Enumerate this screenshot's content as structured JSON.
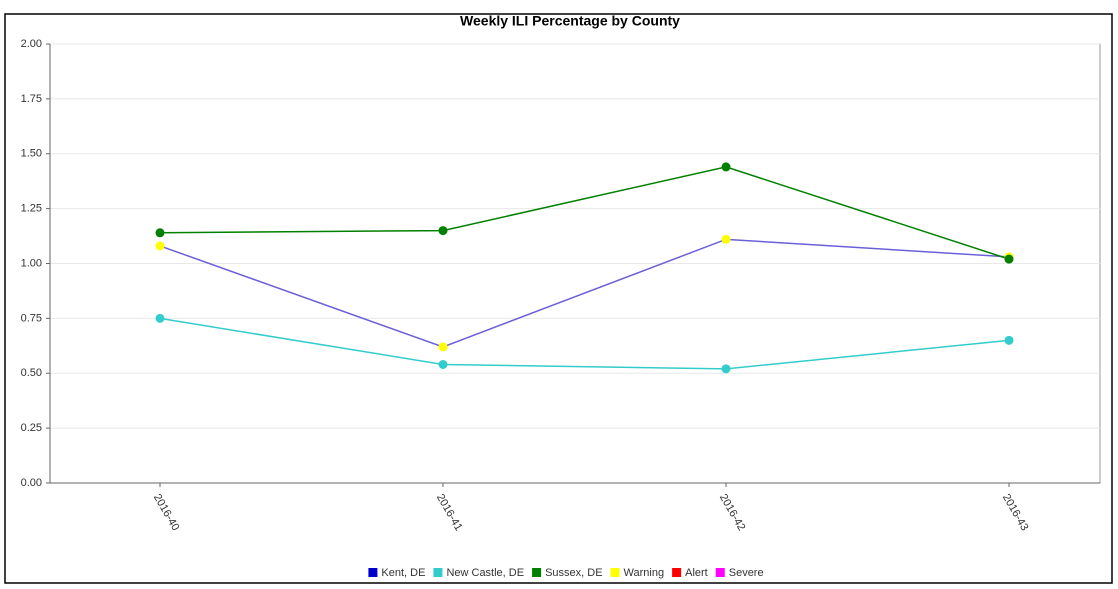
{
  "chart_data": {
    "type": "line",
    "title": "Weekly ILI Percentage by County",
    "categories": [
      "2016-40",
      "2016-41",
      "2016-42",
      "2016-43"
    ],
    "series": [
      {
        "name": "Kent, DE",
        "color": "#0000cc",
        "line_color": "#6a5fd8",
        "marker_color": "#ffff00",
        "values": [
          1.08,
          0.62,
          1.11,
          1.03
        ]
      },
      {
        "name": "New Castle, DE",
        "color": "#33cccc",
        "values": [
          0.75,
          0.54,
          0.52,
          0.65
        ]
      },
      {
        "name": "Sussex, DE",
        "color": "#008000",
        "values": [
          1.14,
          1.15,
          1.44,
          1.02
        ]
      }
    ],
    "status_levels": [
      {
        "name": "Warning",
        "color": "#ffff00"
      },
      {
        "name": "Alert",
        "color": "#ff0000"
      },
      {
        "name": "Severe",
        "color": "#ff00ff"
      }
    ],
    "ylim": [
      0,
      2
    ],
    "yticks": [
      {
        "value": 0,
        "label": "0.00"
      },
      {
        "value": 0.25,
        "label": "0.25"
      },
      {
        "value": 0.5,
        "label": "0.50"
      },
      {
        "value": 0.75,
        "label": "0.75"
      },
      {
        "value": 1,
        "label": "1.00"
      },
      {
        "value": 1.25,
        "label": "1.25"
      },
      {
        "value": 1.5,
        "label": "1.50"
      },
      {
        "value": 1.75,
        "label": "1.75"
      },
      {
        "value": 2,
        "label": "2.00"
      }
    ],
    "grid": true
  }
}
